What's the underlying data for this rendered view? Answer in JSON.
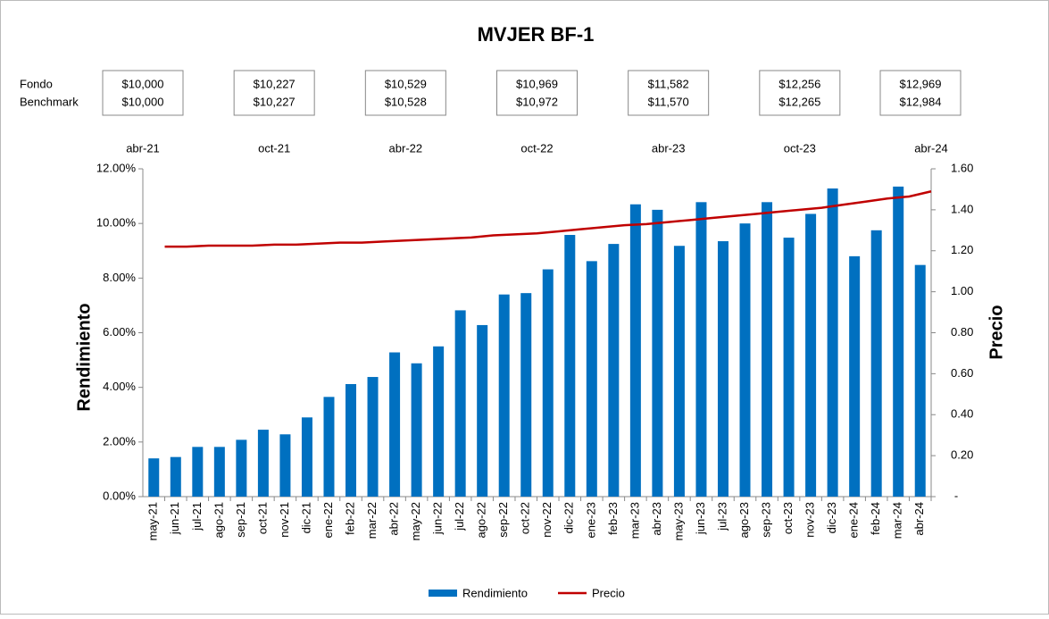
{
  "chart_data": {
    "type": "bar_line",
    "title": "MVJER BF-1",
    "summary": {
      "row_labels": [
        "Fondo",
        "Benchmark"
      ],
      "boxes": [
        [
          "$10,000",
          "$10,000"
        ],
        [
          "$10,227",
          "$10,227"
        ],
        [
          "$10,529",
          "$10,528"
        ],
        [
          "$10,969",
          "$10,972"
        ],
        [
          "$11,582",
          "$11,570"
        ],
        [
          "$12,256",
          "$12,265"
        ],
        [
          "$12,969",
          "$12,984"
        ]
      ]
    },
    "x2_labels": [
      "abr-21",
      "oct-21",
      "abr-22",
      "oct-22",
      "abr-23",
      "oct-23",
      "abr-24"
    ],
    "categories": [
      "may-21",
      "jun-21",
      "jul-21",
      "ago-21",
      "sep-21",
      "oct-21",
      "nov-21",
      "dic-21",
      "ene-22",
      "feb-22",
      "mar-22",
      "abr-22",
      "may-22",
      "jun-22",
      "jul-22",
      "ago-22",
      "sep-22",
      "oct-22",
      "nov-22",
      "dic-22",
      "ene-23",
      "feb-23",
      "mar-23",
      "abr-23",
      "may-23",
      "jun-23",
      "jul-23",
      "ago-23",
      "sep-23",
      "oct-23",
      "nov-23",
      "dic-23",
      "ene-24",
      "feb-24",
      "mar-24",
      "abr-24"
    ],
    "series": [
      {
        "name": "Rendimiento",
        "kind": "bar",
        "color": "#0070c0",
        "axis": "y",
        "values": [
          1.4,
          1.45,
          1.82,
          1.82,
          2.08,
          2.45,
          2.28,
          2.9,
          3.65,
          4.12,
          4.38,
          5.28,
          4.88,
          5.5,
          6.82,
          6.28,
          7.4,
          7.45,
          8.32,
          9.58,
          8.62,
          9.25,
          10.7,
          10.5,
          9.18,
          10.78,
          9.35,
          10.0,
          10.78,
          9.48,
          10.35,
          11.28,
          8.8,
          9.75,
          11.35,
          8.48
        ]
      },
      {
        "name": "Precio",
        "kind": "line",
        "color": "#c00000",
        "axis": "y2",
        "values": [
          1.22,
          1.22,
          1.225,
          1.225,
          1.225,
          1.23,
          1.23,
          1.235,
          1.24,
          1.24,
          1.245,
          1.25,
          1.255,
          1.26,
          1.265,
          1.275,
          1.28,
          1.285,
          1.295,
          1.305,
          1.315,
          1.325,
          1.33,
          1.34,
          1.35,
          1.36,
          1.37,
          1.38,
          1.39,
          1.4,
          1.41,
          1.425,
          1.44,
          1.455,
          1.465,
          1.49
        ]
      }
    ],
    "ylabel": "Rendimiento",
    "y2label": "Precio",
    "ylim": [
      0,
      12
    ],
    "yticks": [
      {
        "value": 0,
        "label": "0.00%"
      },
      {
        "value": 2,
        "label": "2.00%"
      },
      {
        "value": 4,
        "label": "4.00%"
      },
      {
        "value": 6,
        "label": "6.00%"
      },
      {
        "value": 8,
        "label": "8.00%"
      },
      {
        "value": 10,
        "label": "10.00%"
      },
      {
        "value": 12,
        "label": "12.00%"
      }
    ],
    "y2lim": [
      0,
      1.6
    ],
    "y2ticks": [
      {
        "value": 0,
        "label": "-"
      },
      {
        "value": 0.2,
        "label": "0.20"
      },
      {
        "value": 0.4,
        "label": "0.40"
      },
      {
        "value": 0.6,
        "label": "0.60"
      },
      {
        "value": 0.8,
        "label": "0.80"
      },
      {
        "value": 1.0,
        "label": "1.00"
      },
      {
        "value": 1.2,
        "label": "1.20"
      },
      {
        "value": 1.4,
        "label": "1.40"
      },
      {
        "value": 1.6,
        "label": "1.60"
      }
    ],
    "grid": false,
    "legend": "bottom"
  }
}
